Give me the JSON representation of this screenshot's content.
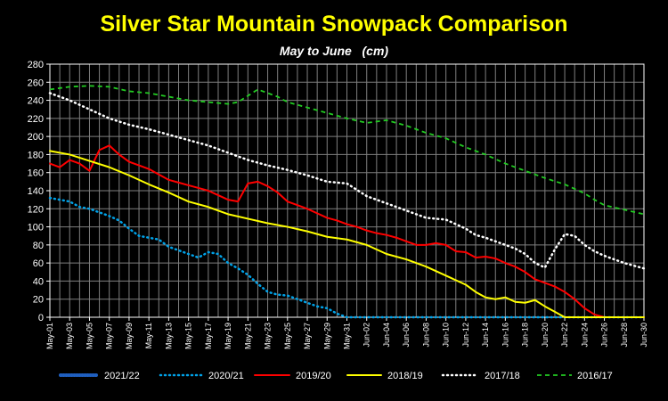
{
  "chart_data": {
    "type": "line",
    "title": "Silver Star Mountain Snowpack Comparison",
    "subtitle": "May to June   (cm)",
    "xlabel": "",
    "ylabel": "",
    "ylim": [
      0,
      280
    ],
    "yticks": [
      0,
      20,
      40,
      60,
      80,
      100,
      120,
      140,
      160,
      180,
      200,
      220,
      240,
      260,
      280
    ],
    "grid": true,
    "legend_position": "bottom",
    "x_tick_labels": [
      "May-01",
      "May-03",
      "May-05",
      "May-07",
      "May-09",
      "May-11",
      "May-13",
      "May-15",
      "May-17",
      "May-19",
      "May-21",
      "May-23",
      "May-25",
      "May-27",
      "May-29",
      "May-31",
      "Jun-02",
      "Jun-04",
      "Jun-06",
      "Jun-08",
      "Jun-10",
      "Jun-12",
      "Jun-14",
      "Jun-16",
      "Jun-18",
      "Jun-20",
      "Jun-22",
      "Jun-24",
      "Jun-26",
      "Jun-28",
      "Jun-30"
    ],
    "x_count": 61,
    "colors": {
      "background": "#000000",
      "plot_bg": "#000000",
      "axes": "#ffffff",
      "grid": "#7f7f7f",
      "title": "#ffff00",
      "subtitle": "#ffffff",
      "text": "#ffffff"
    },
    "series": [
      {
        "name": "2021/22",
        "color": "#1f5fbf",
        "style": "thickdot",
        "points": []
      },
      {
        "name": "2020/21",
        "color": "#00a2e8",
        "style": "dot",
        "points": [
          [
            0,
            132
          ],
          [
            2,
            130
          ],
          [
            4,
            128
          ],
          [
            6,
            122
          ],
          [
            8,
            120
          ],
          [
            10,
            116
          ],
          [
            12,
            112
          ],
          [
            14,
            107
          ],
          [
            16,
            98
          ],
          [
            18,
            90
          ],
          [
            20,
            88
          ],
          [
            22,
            86
          ],
          [
            24,
            78
          ],
          [
            26,
            74
          ],
          [
            28,
            70
          ],
          [
            30,
            66
          ],
          [
            32,
            72
          ],
          [
            34,
            70
          ],
          [
            36,
            60
          ],
          [
            38,
            54
          ],
          [
            40,
            47
          ],
          [
            42,
            37
          ],
          [
            44,
            28
          ],
          [
            46,
            25
          ],
          [
            48,
            24
          ],
          [
            50,
            20
          ],
          [
            52,
            16
          ],
          [
            54,
            12
          ],
          [
            56,
            10
          ],
          [
            58,
            4
          ],
          [
            60,
            0
          ],
          [
            120,
            0
          ]
        ]
      },
      {
        "name": "2019/20",
        "color": "#ff0000",
        "style": "solid",
        "points": [
          [
            0,
            170
          ],
          [
            2,
            166
          ],
          [
            4,
            174
          ],
          [
            6,
            170
          ],
          [
            8,
            162
          ],
          [
            10,
            185
          ],
          [
            12,
            190
          ],
          [
            14,
            180
          ],
          [
            16,
            172
          ],
          [
            18,
            168
          ],
          [
            20,
            164
          ],
          [
            22,
            158
          ],
          [
            24,
            152
          ],
          [
            26,
            149
          ],
          [
            28,
            146
          ],
          [
            30,
            143
          ],
          [
            32,
            140
          ],
          [
            34,
            135
          ],
          [
            36,
            130
          ],
          [
            38,
            128
          ],
          [
            40,
            148
          ],
          [
            42,
            150
          ],
          [
            44,
            145
          ],
          [
            46,
            138
          ],
          [
            48,
            128
          ],
          [
            50,
            124
          ],
          [
            52,
            120
          ],
          [
            54,
            115
          ],
          [
            56,
            110
          ],
          [
            58,
            107
          ],
          [
            60,
            103
          ],
          [
            62,
            100
          ],
          [
            64,
            96
          ],
          [
            66,
            93
          ],
          [
            68,
            91
          ],
          [
            70,
            88
          ],
          [
            72,
            84
          ],
          [
            74,
            80
          ],
          [
            76,
            80
          ],
          [
            78,
            82
          ],
          [
            80,
            80
          ],
          [
            82,
            73
          ],
          [
            84,
            72
          ],
          [
            86,
            66
          ],
          [
            88,
            67
          ],
          [
            90,
            65
          ],
          [
            92,
            60
          ],
          [
            94,
            56
          ],
          [
            96,
            50
          ],
          [
            98,
            42
          ],
          [
            100,
            38
          ],
          [
            102,
            34
          ],
          [
            104,
            28
          ],
          [
            106,
            20
          ],
          [
            108,
            10
          ],
          [
            110,
            3
          ],
          [
            112,
            0
          ],
          [
            120,
            0
          ]
        ]
      },
      {
        "name": "2018/19",
        "color": "#ffff00",
        "style": "solid",
        "points": [
          [
            0,
            184
          ],
          [
            4,
            180
          ],
          [
            8,
            173
          ],
          [
            12,
            166
          ],
          [
            16,
            157
          ],
          [
            20,
            147
          ],
          [
            24,
            138
          ],
          [
            28,
            128
          ],
          [
            32,
            122
          ],
          [
            36,
            114
          ],
          [
            40,
            109
          ],
          [
            44,
            104
          ],
          [
            48,
            100
          ],
          [
            52,
            95
          ],
          [
            56,
            89
          ],
          [
            60,
            86
          ],
          [
            64,
            80
          ],
          [
            68,
            70
          ],
          [
            72,
            64
          ],
          [
            76,
            56
          ],
          [
            80,
            46
          ],
          [
            84,
            36
          ],
          [
            86,
            28
          ],
          [
            88,
            22
          ],
          [
            90,
            20
          ],
          [
            92,
            22
          ],
          [
            94,
            17
          ],
          [
            96,
            16
          ],
          [
            98,
            19
          ],
          [
            100,
            12
          ],
          [
            102,
            6
          ],
          [
            104,
            0
          ],
          [
            120,
            0
          ]
        ]
      },
      {
        "name": "2017/18",
        "color": "#ffffff",
        "style": "dot",
        "points": [
          [
            0,
            248
          ],
          [
            4,
            240
          ],
          [
            8,
            230
          ],
          [
            12,
            220
          ],
          [
            16,
            213
          ],
          [
            20,
            208
          ],
          [
            24,
            202
          ],
          [
            28,
            196
          ],
          [
            32,
            190
          ],
          [
            36,
            182
          ],
          [
            40,
            174
          ],
          [
            44,
            168
          ],
          [
            48,
            163
          ],
          [
            52,
            157
          ],
          [
            56,
            150
          ],
          [
            60,
            148
          ],
          [
            64,
            134
          ],
          [
            68,
            126
          ],
          [
            72,
            118
          ],
          [
            76,
            110
          ],
          [
            80,
            108
          ],
          [
            84,
            98
          ],
          [
            86,
            91
          ],
          [
            88,
            88
          ],
          [
            90,
            84
          ],
          [
            92,
            80
          ],
          [
            94,
            76
          ],
          [
            96,
            70
          ],
          [
            98,
            60
          ],
          [
            100,
            55
          ],
          [
            102,
            75
          ],
          [
            104,
            92
          ],
          [
            106,
            90
          ],
          [
            108,
            80
          ],
          [
            110,
            73
          ],
          [
            112,
            68
          ],
          [
            114,
            64
          ],
          [
            116,
            60
          ],
          [
            118,
            57
          ],
          [
            120,
            54
          ]
        ]
      },
      {
        "name": "2016/17",
        "color": "#22cc22",
        "style": "dash",
        "points": [
          [
            0,
            252
          ],
          [
            4,
            255
          ],
          [
            8,
            256
          ],
          [
            12,
            255
          ],
          [
            16,
            250
          ],
          [
            20,
            248
          ],
          [
            24,
            244
          ],
          [
            28,
            240
          ],
          [
            32,
            238
          ],
          [
            36,
            236
          ],
          [
            38,
            238
          ],
          [
            42,
            252
          ],
          [
            46,
            244
          ],
          [
            48,
            238
          ],
          [
            52,
            232
          ],
          [
            56,
            226
          ],
          [
            60,
            220
          ],
          [
            64,
            215
          ],
          [
            68,
            218
          ],
          [
            72,
            212
          ],
          [
            76,
            204
          ],
          [
            80,
            198
          ],
          [
            84,
            188
          ],
          [
            88,
            180
          ],
          [
            92,
            170
          ],
          [
            96,
            162
          ],
          [
            100,
            154
          ],
          [
            104,
            147
          ],
          [
            108,
            137
          ],
          [
            110,
            130
          ],
          [
            112,
            124
          ],
          [
            116,
            119
          ],
          [
            120,
            114
          ]
        ]
      }
    ]
  }
}
